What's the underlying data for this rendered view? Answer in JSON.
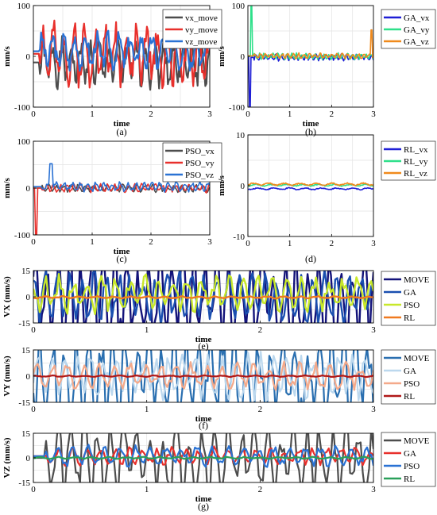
{
  "colors": {
    "vx_move": "#4d4d4d",
    "vy_move": "#e8302c",
    "vz_move": "#2a72d4",
    "GA_vx": "#1f1fd6",
    "GA_vy": "#2ee08a",
    "GA_vz": "#f08a1c",
    "PSO_vx": "#4d4d4d",
    "PSO_vy": "#e8302c",
    "PSO_vz": "#2a72d4",
    "RL_vx": "#1f1fd6",
    "RL_vy": "#2ee08a",
    "RL_vz": "#f08a1c",
    "e_MOVE": "#13137a",
    "e_GA": "#1a4fb0",
    "e_PSO": "#c8e82a",
    "e_RL": "#f07a20",
    "f_MOVE": "#2a6fb0",
    "f_GA": "#bcd8ee",
    "f_PSO": "#f4a98a",
    "f_RL": "#b01818",
    "g_MOVE": "#4d4d4d",
    "g_GA": "#e8302c",
    "g_PSO": "#2a72d4",
    "g_RL": "#2aa05a"
  },
  "chart_data": [
    {
      "id": "a",
      "type": "line",
      "caption": "(a)",
      "xlabel": "time",
      "ylabel": "mm/s",
      "xlim": [
        0,
        3
      ],
      "ylim": [
        -100,
        100
      ],
      "xticks": [
        "0",
        "1",
        "2",
        "3"
      ],
      "yticks": [
        "100",
        "0",
        "-100"
      ],
      "ytick_values": [
        100,
        0,
        -100
      ],
      "grid": true,
      "legend_position": "right",
      "series": [
        {
          "name": "vx_move",
          "color_key": "vx_move",
          "amp": 45,
          "mean": -12,
          "freq": 19,
          "start": 0.1,
          "seed": 1
        },
        {
          "name": "vy_move",
          "color_key": "vy_move",
          "amp": 60,
          "mean": 5,
          "freq": 17,
          "start": 0.1,
          "seed": 2
        },
        {
          "name": "vz_move",
          "color_key": "vz_move",
          "amp": 35,
          "mean": 10,
          "freq": 16,
          "start": 0.1,
          "seed": 3
        }
      ]
    },
    {
      "id": "b",
      "type": "line",
      "caption": "(b)",
      "xlabel": "time",
      "ylabel": "mm/s",
      "xlim": [
        0,
        3
      ],
      "ylim": [
        -100,
        100
      ],
      "xticks": [
        "0",
        "1",
        "2",
        "3"
      ],
      "yticks": [
        "100",
        "0",
        "-100"
      ],
      "ytick_values": [
        100,
        0,
        -100
      ],
      "grid": true,
      "legend_position": "right",
      "series": [
        {
          "name": "GA_vx",
          "color_key": "GA_vx",
          "amp": 6,
          "mean": -2,
          "freq": 25,
          "start": 0.15,
          "seed": 4,
          "spike": [
            0.05,
            -100
          ]
        },
        {
          "name": "GA_vy",
          "color_key": "GA_vy",
          "amp": 6,
          "mean": 0,
          "freq": 27,
          "start": 0.15,
          "seed": 5,
          "spike": [
            0.08,
            100
          ]
        },
        {
          "name": "GA_vz",
          "color_key": "GA_vz",
          "amp": 5,
          "mean": 1,
          "freq": 23,
          "start": 0.15,
          "seed": 6,
          "spike": [
            2.95,
            52
          ]
        }
      ]
    },
    {
      "id": "c",
      "type": "line",
      "caption": "(c)",
      "xlabel": "time",
      "ylabel": "mm/s",
      "xlim": [
        0,
        3
      ],
      "ylim": [
        -100,
        100
      ],
      "xticks": [
        "0",
        "1",
        "2",
        "3"
      ],
      "yticks": [
        "100",
        "0",
        "-100"
      ],
      "ytick_values": [
        100,
        0,
        -100
      ],
      "grid": true,
      "legend_position": "right",
      "series": [
        {
          "name": "PSO_vx",
          "color_key": "PSO_vx",
          "amp": 8,
          "mean": 0,
          "freq": 24,
          "start": 0.15,
          "seed": 7
        },
        {
          "name": "PSO_vy",
          "color_key": "PSO_vy",
          "amp": 9,
          "mean": 0,
          "freq": 26,
          "start": 0.15,
          "seed": 8,
          "spike": [
            0.05,
            -100
          ]
        },
        {
          "name": "PSO_vz",
          "color_key": "PSO_vz",
          "amp": 10,
          "mean": 3,
          "freq": 22,
          "start": 0.15,
          "seed": 9,
          "spike": [
            0.3,
            52
          ]
        }
      ]
    },
    {
      "id": "d",
      "type": "line",
      "caption": "(d)",
      "xlabel": "",
      "ylabel": "mm/s",
      "xlim": [
        0,
        3
      ],
      "ylim": [
        -10,
        10
      ],
      "xticks": [
        "0",
        "1",
        "2",
        "3"
      ],
      "yticks": [
        "10",
        "0",
        "-10"
      ],
      "ytick_values": [
        10,
        0,
        -10
      ],
      "grid": true,
      "legend_position": "right",
      "series": [
        {
          "name": "RL_vx",
          "color_key": "RL_vx",
          "amp": 0.2,
          "mean": -0.6,
          "freq": 8,
          "start": 0,
          "seed": 10
        },
        {
          "name": "RL_vy",
          "color_key": "RL_vy",
          "amp": 0.2,
          "mean": 0.1,
          "freq": 8,
          "start": 0,
          "seed": 11
        },
        {
          "name": "RL_vz",
          "color_key": "RL_vz",
          "amp": 0.25,
          "mean": 0.3,
          "freq": 8,
          "start": 0,
          "seed": 12
        }
      ]
    },
    {
      "id": "e",
      "type": "line",
      "caption": "(e)",
      "xlabel": "time",
      "ylabel": "VX (mm/s)",
      "xlim": [
        0,
        3
      ],
      "ylim": [
        -15,
        15
      ],
      "xticks": [
        "0",
        "1",
        "2",
        "3"
      ],
      "yticks": [
        "15",
        "0",
        "-15"
      ],
      "ytick_values": [
        15,
        0,
        -15
      ],
      "grid": true,
      "legend_position": "right",
      "series": [
        {
          "name": "MOVE",
          "color_key": "e_MOVE",
          "amp": 30,
          "mean": 0,
          "freq": 30,
          "start": 0,
          "seed": 13
        },
        {
          "name": "GA",
          "color_key": "e_GA",
          "amp": 14,
          "mean": 0,
          "freq": 28,
          "start": 0,
          "seed": 14
        },
        {
          "name": "PSO",
          "color_key": "e_PSO",
          "amp": 10,
          "mean": 2,
          "freq": 24,
          "start": 0,
          "seed": 15
        },
        {
          "name": "RL",
          "color_key": "e_RL",
          "amp": 0.6,
          "mean": -0.3,
          "freq": 20,
          "start": 0,
          "seed": 16
        }
      ]
    },
    {
      "id": "f",
      "type": "line",
      "caption": "(f)",
      "xlabel": "time",
      "ylabel": "VY (mm/s)",
      "xlim": [
        0,
        3
      ],
      "ylim": [
        -15,
        15
      ],
      "xticks": [
        "0",
        "1",
        "2",
        "3"
      ],
      "yticks": [
        "15",
        "0",
        "-15"
      ],
      "ytick_values": [
        15,
        0,
        -15
      ],
      "grid": true,
      "legend_position": "right",
      "series": [
        {
          "name": "MOVE",
          "color_key": "f_MOVE",
          "amp": 28,
          "mean": 0,
          "freq": 28,
          "start": 0,
          "seed": 17
        },
        {
          "name": " GA",
          "color_key": "f_GA",
          "amp": 12,
          "mean": 0,
          "freq": 26,
          "start": 0,
          "seed": 18
        },
        {
          "name": "PSO",
          "color_key": "f_PSO",
          "amp": 7,
          "mean": 0,
          "freq": 22,
          "start": 0,
          "seed": 19
        },
        {
          "name": "RL",
          "color_key": "f_RL",
          "amp": 0.4,
          "mean": 0,
          "freq": 20,
          "start": 0,
          "seed": 20
        }
      ]
    },
    {
      "id": "g",
      "type": "line",
      "caption": "(g)",
      "xlabel": "time",
      "ylabel": "VZ (mm/s)",
      "xlim": [
        0,
        3
      ],
      "ylim": [
        -15,
        15
      ],
      "xticks": [
        "0",
        "1",
        "2",
        "3"
      ],
      "yticks": [
        "15",
        "0",
        "-15"
      ],
      "ytick_values": [
        15,
        0,
        -15
      ],
      "grid": true,
      "legend_position": "right",
      "series": [
        {
          "name": "MOVE",
          "color_key": "g_MOVE",
          "amp": 22,
          "mean": 0,
          "freq": 26,
          "start": 0.1,
          "seed": 21
        },
        {
          "name": "GA",
          "color_key": "g_GA",
          "amp": 5,
          "mean": 1,
          "freq": 24,
          "start": 0.1,
          "seed": 22
        },
        {
          "name": "PSO",
          "color_key": "g_PSO",
          "amp": 6,
          "mean": 1,
          "freq": 22,
          "start": 0.1,
          "seed": 23
        },
        {
          "name": "RL",
          "color_key": "g_RL",
          "amp": 0.6,
          "mean": 0,
          "freq": 20,
          "start": 0,
          "seed": 24
        }
      ]
    }
  ]
}
